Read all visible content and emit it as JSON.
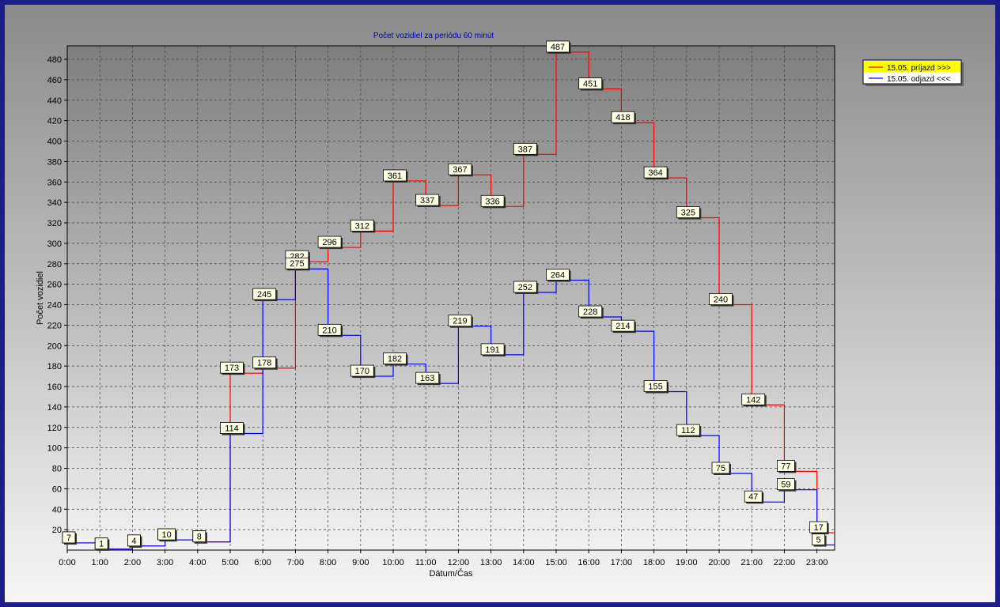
{
  "colors": {
    "arrival": "#ff0000",
    "departure": "#0000ff",
    "title": "#0000c0",
    "legend_bg": "#ffff00",
    "label_bg": "#ffffe6"
  },
  "chart_data": {
    "type": "line",
    "step": true,
    "title": "Počet vozidiel za periódu 60 minút",
    "xlabel": "Dátum/Čas",
    "ylabel": "Počet vozidiel",
    "categories": [
      "0:00",
      "1:00",
      "2:00",
      "3:00",
      "4:00",
      "5:00",
      "6:00",
      "7:00",
      "8:00",
      "9:00",
      "10:00",
      "11:00",
      "12:00",
      "13:00",
      "14:00",
      "15:00",
      "16:00",
      "17:00",
      "18:00",
      "19:00",
      "20:00",
      "21:00",
      "22:00",
      "23:00"
    ],
    "yticks": [
      20,
      40,
      60,
      80,
      100,
      120,
      140,
      160,
      180,
      200,
      220,
      240,
      260,
      280,
      300,
      320,
      340,
      360,
      380,
      400,
      420,
      440,
      460,
      480
    ],
    "ylim": [
      0,
      490
    ],
    "grid": true,
    "legend_position": "top-right",
    "series": [
      {
        "name": "15.05.  príjazd >>>",
        "color": "#ff0000",
        "values": [
          7,
          1,
          4,
          10,
          8,
          173,
          178,
          282,
          296,
          312,
          361,
          337,
          367,
          336,
          387,
          487,
          451,
          418,
          364,
          325,
          240,
          142,
          77,
          17
        ]
      },
      {
        "name": "15.05.  odjazd <<<",
        "color": "#0000ff",
        "values": [
          7,
          1,
          4,
          10,
          8,
          114,
          245,
          275,
          210,
          170,
          182,
          163,
          219,
          191,
          252,
          264,
          228,
          214,
          155,
          112,
          75,
          47,
          59,
          5
        ]
      }
    ]
  }
}
